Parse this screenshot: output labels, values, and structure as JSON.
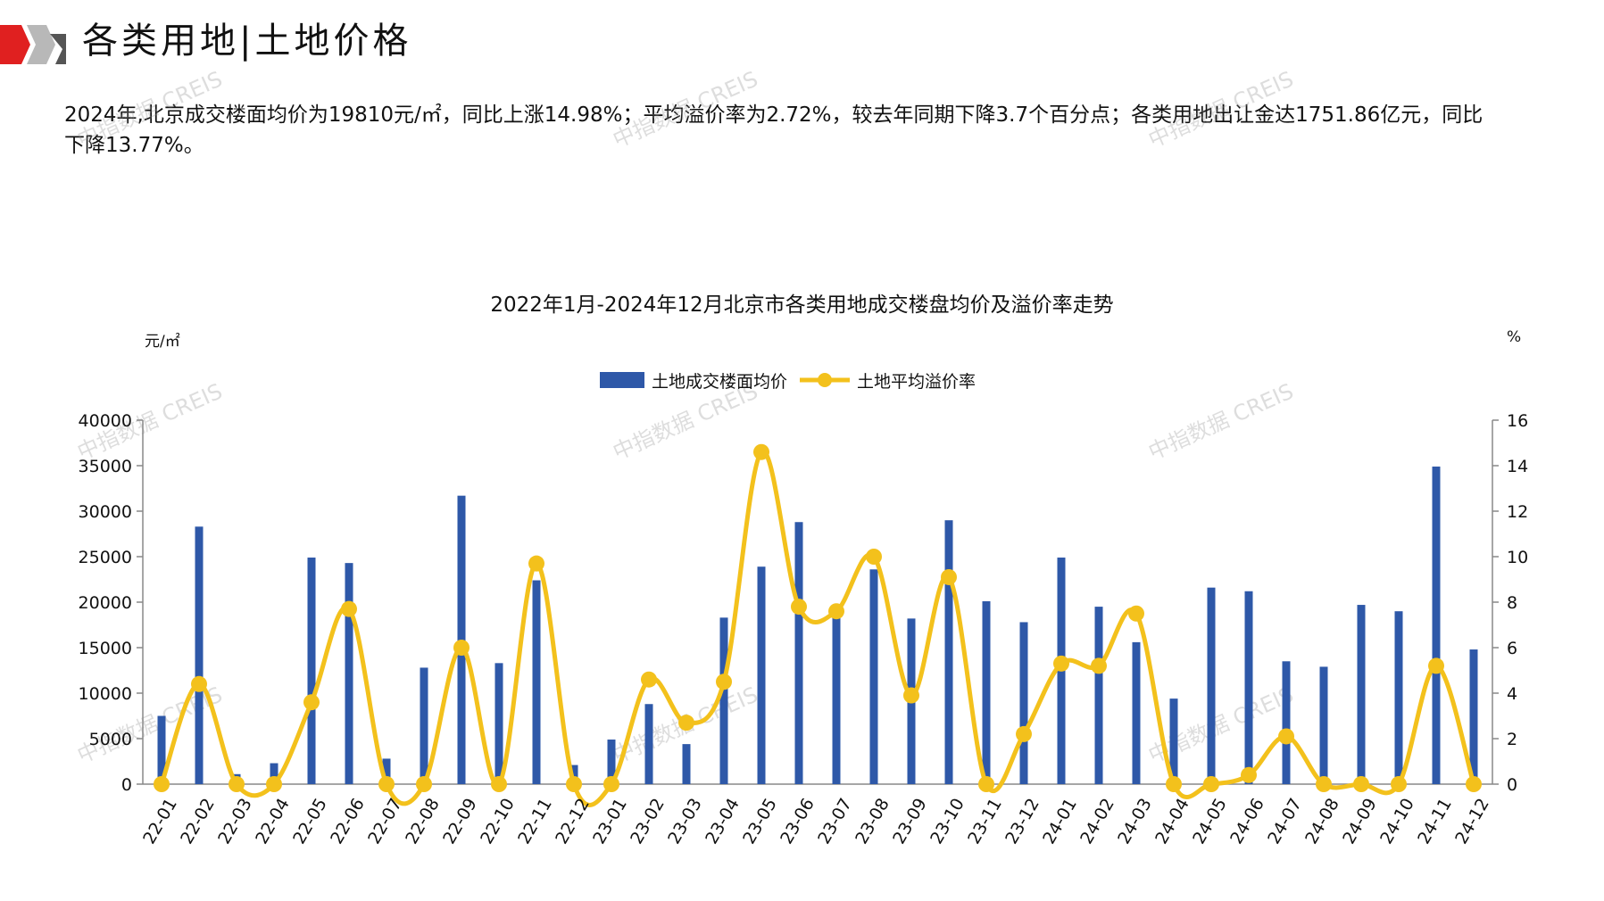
{
  "header": {
    "title": "各类用地|土地价格"
  },
  "summary": {
    "text": "2024年,北京成交楼面均价为19810元/㎡，同比上涨14.98%；平均溢价率为2.72%，较去年同期下降3.7个百分点；各类用地出让金达1751.86亿元，同比下降13.77%。"
  },
  "watermark": {
    "text": "中指数据 CREIS"
  },
  "colors": {
    "bar": "#2e58a8",
    "line": "#f3c11c",
    "logo_red": "#e02020",
    "logo_gray": "#b0b0b0"
  },
  "chart_data": {
    "type": "bar",
    "title": "2022年1月-2024年12月北京市各类用地成交楼盘均价及溢价率走势",
    "y_left_unit": "元/㎡",
    "y_right_unit": "%",
    "ylim_left": [
      0,
      40000
    ],
    "ylim_right": [
      0,
      16
    ],
    "yticks_left": [
      "0",
      "5000",
      "10000",
      "15000",
      "20000",
      "25000",
      "30000",
      "35000",
      "40000"
    ],
    "yticks_right": [
      "0",
      "2",
      "4",
      "6",
      "8",
      "10",
      "12",
      "14",
      "16"
    ],
    "grid": false,
    "legend_position": "top-center",
    "categories": [
      "22-01",
      "22-02",
      "22-03",
      "22-04",
      "22-05",
      "22-06",
      "22-07",
      "22-08",
      "22-09",
      "22-10",
      "22-11",
      "22-12",
      "23-01",
      "23-02",
      "23-03",
      "23-04",
      "23-05",
      "23-06",
      "23-07",
      "23-08",
      "23-09",
      "23-10",
      "23-11",
      "23-12",
      "24-01",
      "24-02",
      "24-03",
      "24-04",
      "24-05",
      "24-06",
      "24-07",
      "24-08",
      "24-09",
      "24-10",
      "24-11",
      "24-12"
    ],
    "series": [
      {
        "name": "土地成交楼面均价",
        "type": "bar",
        "axis": "left",
        "values": [
          7500,
          28300,
          1100,
          2300,
          24900,
          24300,
          2800,
          12800,
          31700,
          13300,
          22400,
          2100,
          4900,
          8800,
          4400,
          18300,
          23900,
          28800,
          19000,
          23600,
          18200,
          29000,
          20100,
          17800,
          24900,
          19500,
          15600,
          9400,
          21600,
          21200,
          13500,
          12900,
          19700,
          19000,
          34900,
          14800
        ]
      },
      {
        "name": "土地平均溢价率",
        "type": "line",
        "axis": "right",
        "values": [
          0,
          4.4,
          0,
          0,
          3.6,
          7.7,
          0,
          0,
          6.0,
          0,
          9.7,
          0,
          0,
          4.6,
          2.7,
          4.5,
          14.6,
          7.8,
          7.6,
          10.0,
          3.9,
          9.1,
          0,
          2.2,
          5.3,
          5.2,
          7.5,
          0,
          0,
          0.4,
          2.1,
          0,
          0,
          0,
          5.2,
          0
        ]
      }
    ]
  }
}
